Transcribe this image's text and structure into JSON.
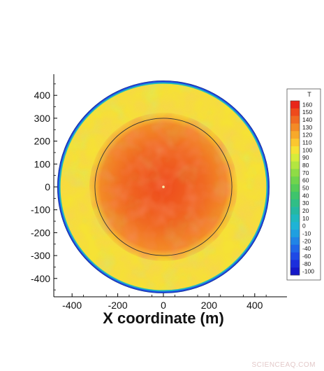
{
  "chart_data": {
    "type": "heatmap",
    "subtype": "circular contour field",
    "title": "",
    "xlabel": "X coordinate (m)",
    "ylabel": "",
    "xlim": [
      -480,
      480
    ],
    "ylim": [
      -480,
      480
    ],
    "x_ticks": [
      -400,
      -200,
      0,
      200,
      400
    ],
    "y_ticks": [
      400,
      300,
      200,
      100,
      0,
      -100,
      -200,
      -300,
      -400
    ],
    "x_tick_labels": [
      "-400",
      "-200",
      "0",
      "200",
      "400"
    ],
    "y_tick_labels": [
      "400",
      "300",
      "200",
      "100",
      "0",
      "-100",
      "-200",
      "-300",
      "-400"
    ],
    "domain_radius": 460,
    "inner_circle_radius": 300,
    "colorbar": {
      "title": "T",
      "levels": [
        160,
        150,
        140,
        130,
        120,
        110,
        100,
        90,
        80,
        70,
        60,
        50,
        40,
        30,
        20,
        10,
        0,
        -10,
        -20,
        -40,
        -60,
        -80,
        -100
      ],
      "labels": [
        "160",
        "150",
        "140",
        "130",
        "120",
        "110",
        "100",
        "90",
        "80",
        "70",
        "60",
        "50",
        "40",
        "30",
        "20",
        "10",
        "0",
        "-10",
        "-20",
        "-40",
        "-60",
        "-80",
        "-100"
      ],
      "colors": [
        "#e8261a",
        "#ee4a1c",
        "#f06a22",
        "#f38a26",
        "#f7a92a",
        "#fbc730",
        "#f6e235",
        "#d6ec3a",
        "#b3e640",
        "#8fdc46",
        "#70d44d",
        "#55cc58",
        "#3fc46c",
        "#30be86",
        "#25b8a2",
        "#1fb8bf",
        "#1eb3d6",
        "#1f9fe0",
        "#2184e6",
        "#2066e8",
        "#1e49e6",
        "#1b2edc",
        "#1518c8"
      ]
    },
    "field_description_values": {
      "center_value": 150,
      "inner_region_typical": 140,
      "outer_ring_typical": 105,
      "boundary_value": -60
    },
    "legend_placement": "right",
    "grid": false
  },
  "watermark": "SCIENCEAQ.COM"
}
